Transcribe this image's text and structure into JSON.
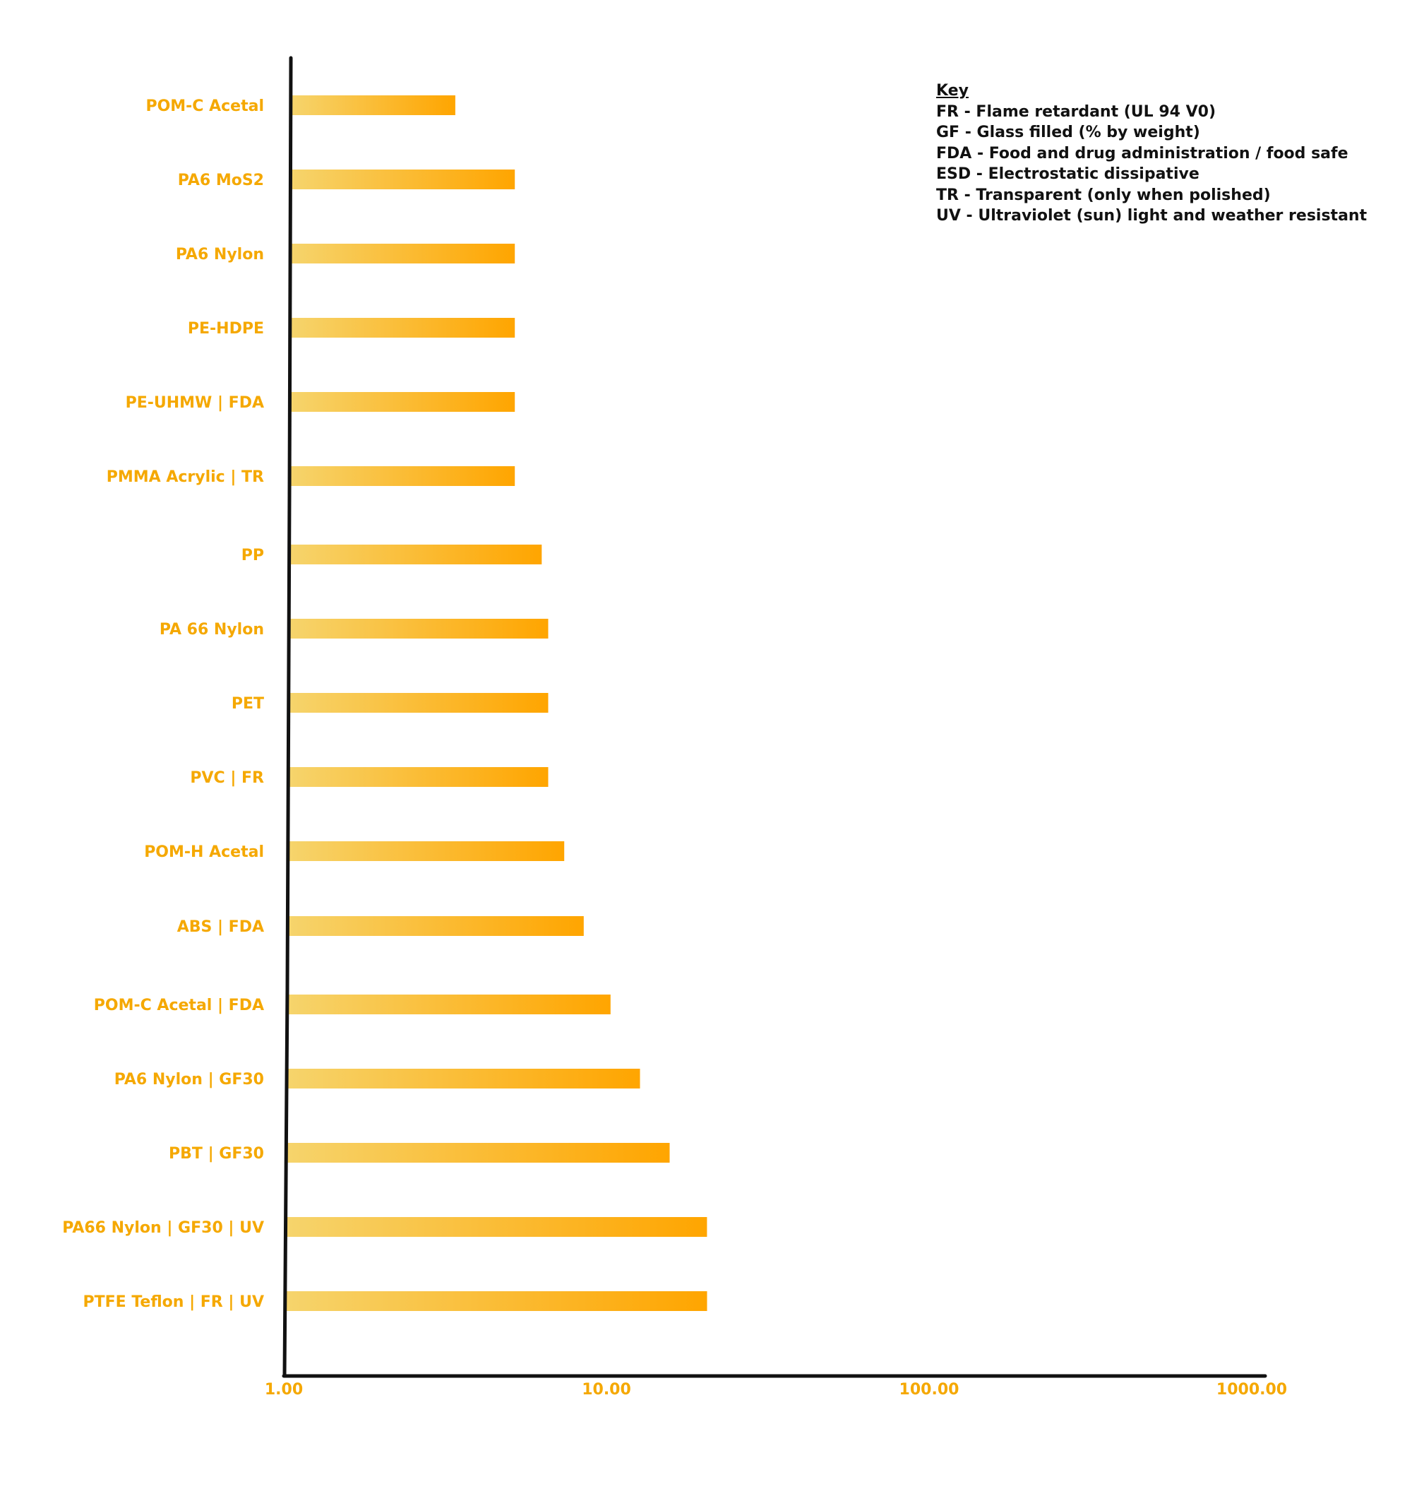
{
  "chart_data": {
    "type": "bar",
    "orientation": "horizontal",
    "x_scale": "log",
    "xlim": [
      1,
      1000
    ],
    "x_ticks": [
      "1.00",
      "10.00",
      "100.00",
      "1000.00"
    ],
    "categories": [
      "POM-C Acetal",
      "PA6 MoS2",
      "PA6 Nylon",
      "PE-HDPE",
      "PE-UHMW | FDA",
      "PMMA Acrylic | TR",
      "PP",
      "PA 66 Nylon",
      "PET",
      "PVC | FR",
      "POM-H Acetal",
      "ABS | FDA",
      "POM-C Acetal | FDA",
      "PA6 Nylon | GF30",
      "PBT | GF30",
      "PA66 Nylon | GF30 | UV",
      "PTFE Teflon | FR | UV"
    ],
    "values": [
      3.4,
      5.2,
      5.2,
      5.2,
      5.2,
      5.2,
      6.3,
      6.6,
      6.6,
      6.6,
      7.4,
      8.5,
      10.3,
      12.7,
      15.7,
      20.5,
      20.5
    ],
    "grid": false,
    "legend": null,
    "colors": {
      "bar_start": "#f6d46c",
      "bar_end": "#ffa500",
      "label": "#f5a800",
      "axis": "#111111"
    }
  },
  "key": {
    "title": "Key",
    "items": [
      "FR - Flame retardant (UL 94 V0)",
      "GF - Glass filled (% by weight)",
      "FDA - Food and drug administration / food safe",
      "ESD - Electrostatic dissipative",
      "TR - Transparent (only when polished)",
      "UV - Ultraviolet (sun) light and weather resistant"
    ]
  }
}
